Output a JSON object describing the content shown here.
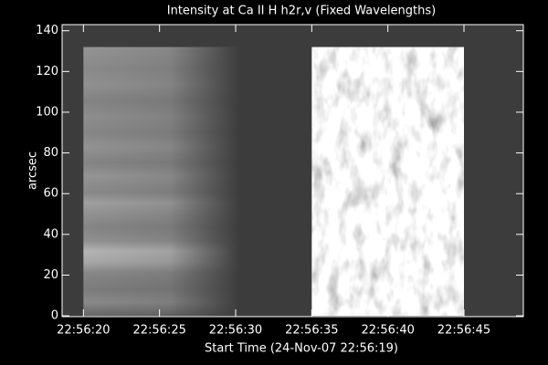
{
  "chart_data": {
    "type": "image",
    "title": "Intensity at Ca II H h2r,v (Fixed Wavelengths)",
    "xlabel": "Start Time (24-Nov-07 22:56:19)",
    "ylabel": "arcsec",
    "xlim": [
      -0.4,
      29.9
    ],
    "ylim": [
      -0.4,
      143
    ],
    "xticks": [
      {
        "value": 1,
        "label": "22:56:20"
      },
      {
        "value": 6,
        "label": "22:56:25"
      },
      {
        "value": 11,
        "label": "22:56:30"
      },
      {
        "value": 16,
        "label": "22:56:35"
      },
      {
        "value": 21,
        "label": "22:56:40"
      },
      {
        "value": 26,
        "label": "22:56:45"
      }
    ],
    "yticks": [
      0,
      20,
      40,
      60,
      80,
      100,
      120,
      140
    ],
    "images": [
      {
        "style": "striped",
        "xrange": [
          1,
          11.3
        ],
        "yrange": [
          0,
          132
        ]
      },
      {
        "style": "mottled",
        "xrange": [
          16,
          26
        ],
        "yrange": [
          0,
          132
        ]
      }
    ],
    "background": "#3c3c3c",
    "axis_color": "#ffffff"
  }
}
